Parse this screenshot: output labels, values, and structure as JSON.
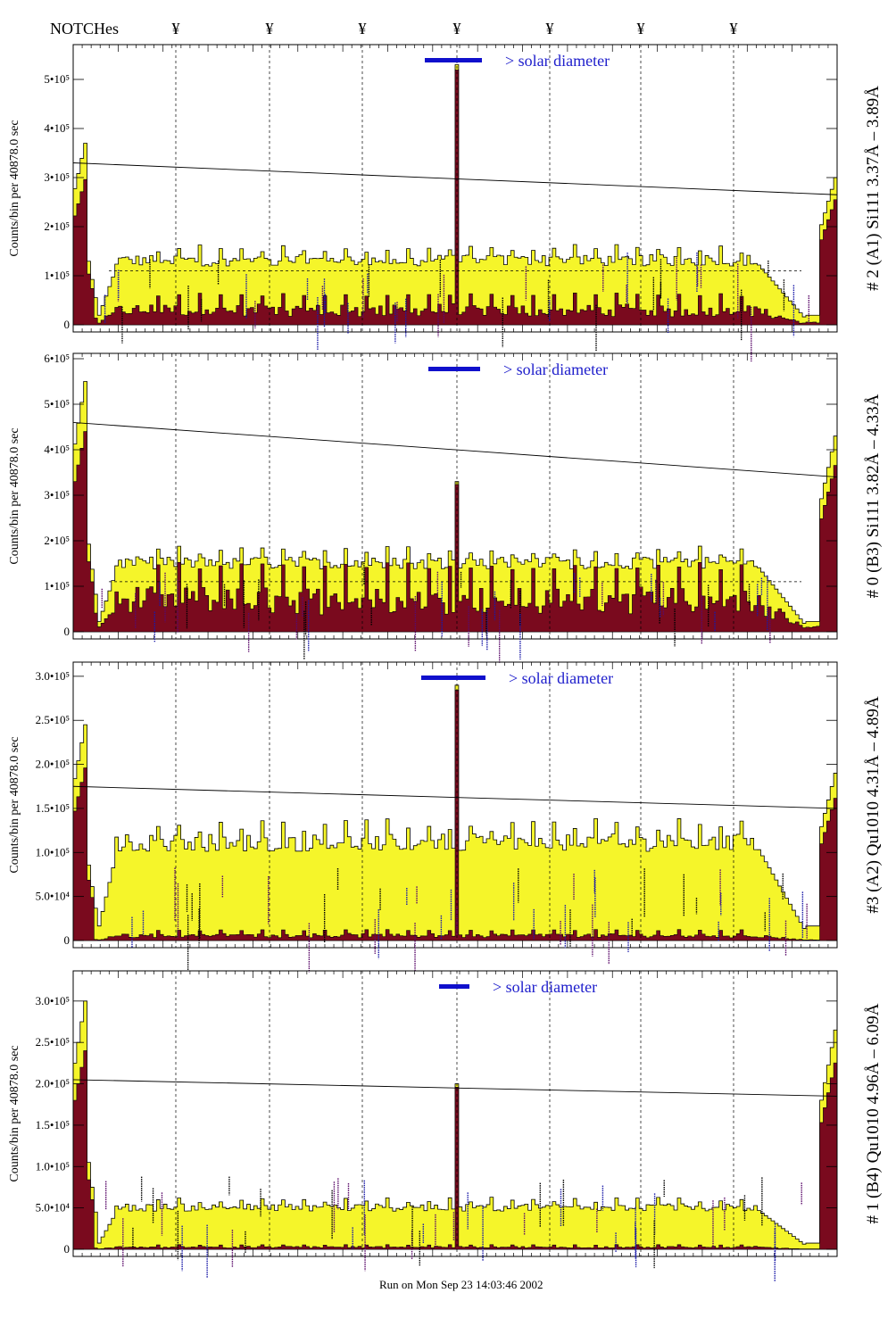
{
  "header": {
    "notches_label": "NOTCHes",
    "notch_symbol": "¥",
    "notch_count": 7
  },
  "footer": {
    "run_info": "Run on Mon Sep 23 14:03:46 2002"
  },
  "colors": {
    "fill_total": "#f5f52a",
    "fill_peak": "#7a0a1e",
    "solar_bar": "#1010cc",
    "line_labels_black": "#000000",
    "line_labels_blue": "#1a1aa8",
    "line_labels_purple": "#5a0a6a"
  },
  "chart_data": [
    {
      "type": "area",
      "panel_label": "# 2 (A1) Si111  3.37Å – 3.89Å",
      "ylabel": "Counts/bin per  40878.0 sec",
      "yticks": [
        "0",
        "1•10⁵",
        "2•10⁵",
        "3•10⁵",
        "4•10⁵",
        "5•10⁵"
      ],
      "ytick_values": [
        0,
        100000,
        200000,
        300000,
        400000,
        500000
      ],
      "ylim": [
        0,
        560000
      ],
      "annotation": "> solar diameter",
      "x_range": [
        0,
        1
      ],
      "baseline_level": 130000,
      "sloped_line": [
        [
          0,
          330000
        ],
        [
          1,
          265000
        ]
      ],
      "dashed_level": 110000,
      "central_peak": 530000,
      "peak_fraction": 0.22,
      "left_edge_peak": 370000,
      "right_edge_peak": 300000
    },
    {
      "type": "area",
      "panel_label": "# 0 (B3) Si111  3.82Å – 4.33Å",
      "ylabel": "Counts/bin per  40878.0 sec",
      "yticks": [
        "0",
        "1•10⁵",
        "2•10⁵",
        "3•10⁵",
        "4•10⁵",
        "5•10⁵",
        "6•10⁵"
      ],
      "ytick_values": [
        0,
        100000,
        200000,
        300000,
        400000,
        500000,
        600000
      ],
      "ylim": [
        0,
        600000
      ],
      "annotation": "> solar diameter",
      "x_range": [
        0,
        1
      ],
      "baseline_level": 150000,
      "sloped_line": [
        [
          0,
          460000
        ],
        [
          1,
          340000
        ]
      ],
      "dashed_level": 110000,
      "central_peak": 330000,
      "peak_fraction": 0.45,
      "left_edge_peak": 550000,
      "right_edge_peak": 430000
    },
    {
      "type": "area",
      "panel_label": "#3 (A2) Qu1010  4.31Å – 4.89Å",
      "ylabel": "Counts/bin per  40878.0 sec",
      "yticks": [
        "0",
        "5.0•10⁴",
        "1.0•10⁵",
        "1.5•10⁵",
        "2.0•10⁵",
        "2.5•10⁵",
        "3.0•10⁵"
      ],
      "ytick_values": [
        0,
        50000,
        100000,
        150000,
        200000,
        250000,
        300000
      ],
      "ylim": [
        0,
        310000
      ],
      "annotation": "> solar diameter",
      "x_range": [
        0,
        1
      ],
      "baseline_level": 110000,
      "sloped_line": [
        [
          0,
          175000
        ],
        [
          1,
          150000
        ]
      ],
      "dashed_level": null,
      "central_peak": 290000,
      "peak_fraction": 0.05,
      "left_edge_peak": 245000,
      "right_edge_peak": 190000
    },
    {
      "type": "area",
      "panel_label": "# 1 (B4) Qu1010 4.96Å – 6.09Å",
      "ylabel": "Counts/bin per  40878.0 sec",
      "yticks": [
        "0",
        "5.0•10⁴",
        "1.0•10⁵",
        "1.5•10⁵",
        "2.0•10⁵",
        "2.5•10⁵",
        "3.0•10⁵"
      ],
      "ytick_values": [
        0,
        50000,
        100000,
        150000,
        200000,
        250000,
        300000
      ],
      "ylim": [
        0,
        330000
      ],
      "annotation": "> solar diameter",
      "x_range": [
        0,
        1
      ],
      "baseline_level": 50000,
      "sloped_line": [
        [
          0,
          205000
        ],
        [
          1,
          185000
        ]
      ],
      "dashed_level": null,
      "central_peak": 200000,
      "peak_fraction": 0.05,
      "left_edge_peak": 300000,
      "right_edge_peak": 265000
    }
  ]
}
